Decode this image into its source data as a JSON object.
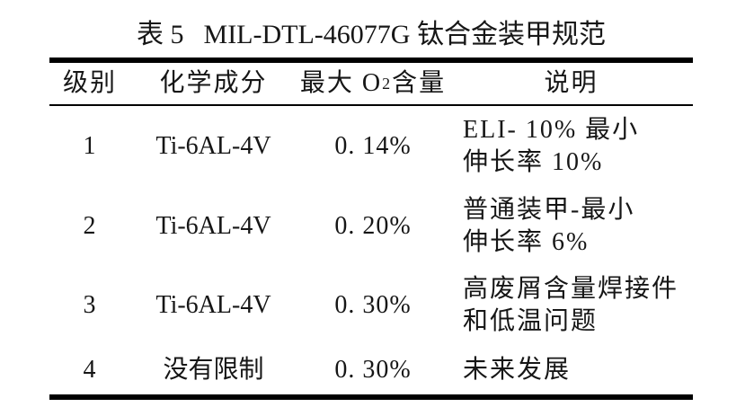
{
  "page": {
    "background": "#ffffff",
    "text_color": "#161616",
    "rule_color": "#000000"
  },
  "caption": {
    "label": "表 5",
    "title": "MIL-DTL-46077G 钛合金装甲规范"
  },
  "table": {
    "headers": {
      "grade": "级别",
      "chemistry": "化学成分",
      "oxygen_pre": "最大 O",
      "oxygen_sub": "2",
      "oxygen_post": " 含量",
      "description": "说明"
    },
    "rows": [
      {
        "grade": "1",
        "chemistry": "Ti-6AL-4V",
        "oxygen": "0. 14%",
        "desc_line1": "ELI- 10% 最小",
        "desc_line2": "伸长率 10%"
      },
      {
        "grade": "2",
        "chemistry": "Ti-6AL-4V",
        "oxygen": "0. 20%",
        "desc_line1": "普通装甲-最小",
        "desc_line2": "伸长率 6%"
      },
      {
        "grade": "3",
        "chemistry": "Ti-6AL-4V",
        "oxygen": "0. 30%",
        "desc_line1": "高废屑含量焊接件",
        "desc_line2": "和低温问题"
      },
      {
        "grade": "4",
        "chemistry": "没有限制",
        "oxygen": "0. 30%",
        "desc_line1": "未来发展",
        "desc_line2": ""
      }
    ]
  }
}
